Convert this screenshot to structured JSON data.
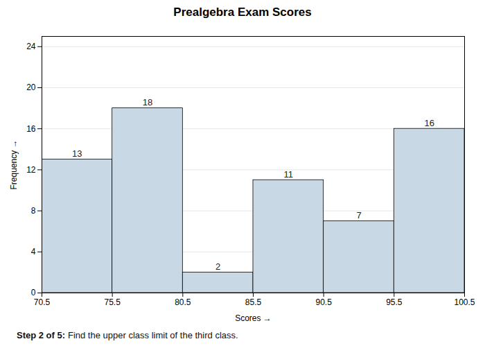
{
  "chart_data": {
    "type": "histogram",
    "title": "Prealgebra Exam Scores",
    "xlabel": "Scores",
    "ylabel": "Frequency",
    "bins": [
      70.5,
      75.5,
      80.5,
      85.5,
      90.5,
      95.5,
      100.5
    ],
    "values": [
      13,
      18,
      2,
      11,
      7,
      16
    ],
    "color": "#c8d8e4",
    "xlim": [
      70.5,
      100.5
    ],
    "xticks": [
      70.5,
      75.5,
      80.5,
      85.5,
      90.5,
      95.5,
      100.5
    ],
    "ylim": [
      0,
      25
    ],
    "yticks": [
      0,
      4,
      8,
      12,
      16,
      20,
      24
    ],
    "grid": true,
    "data_labels": true,
    "annotations": [
      "Step 2 of 5:",
      "Find the upper class limit of the third class."
    ]
  }
}
